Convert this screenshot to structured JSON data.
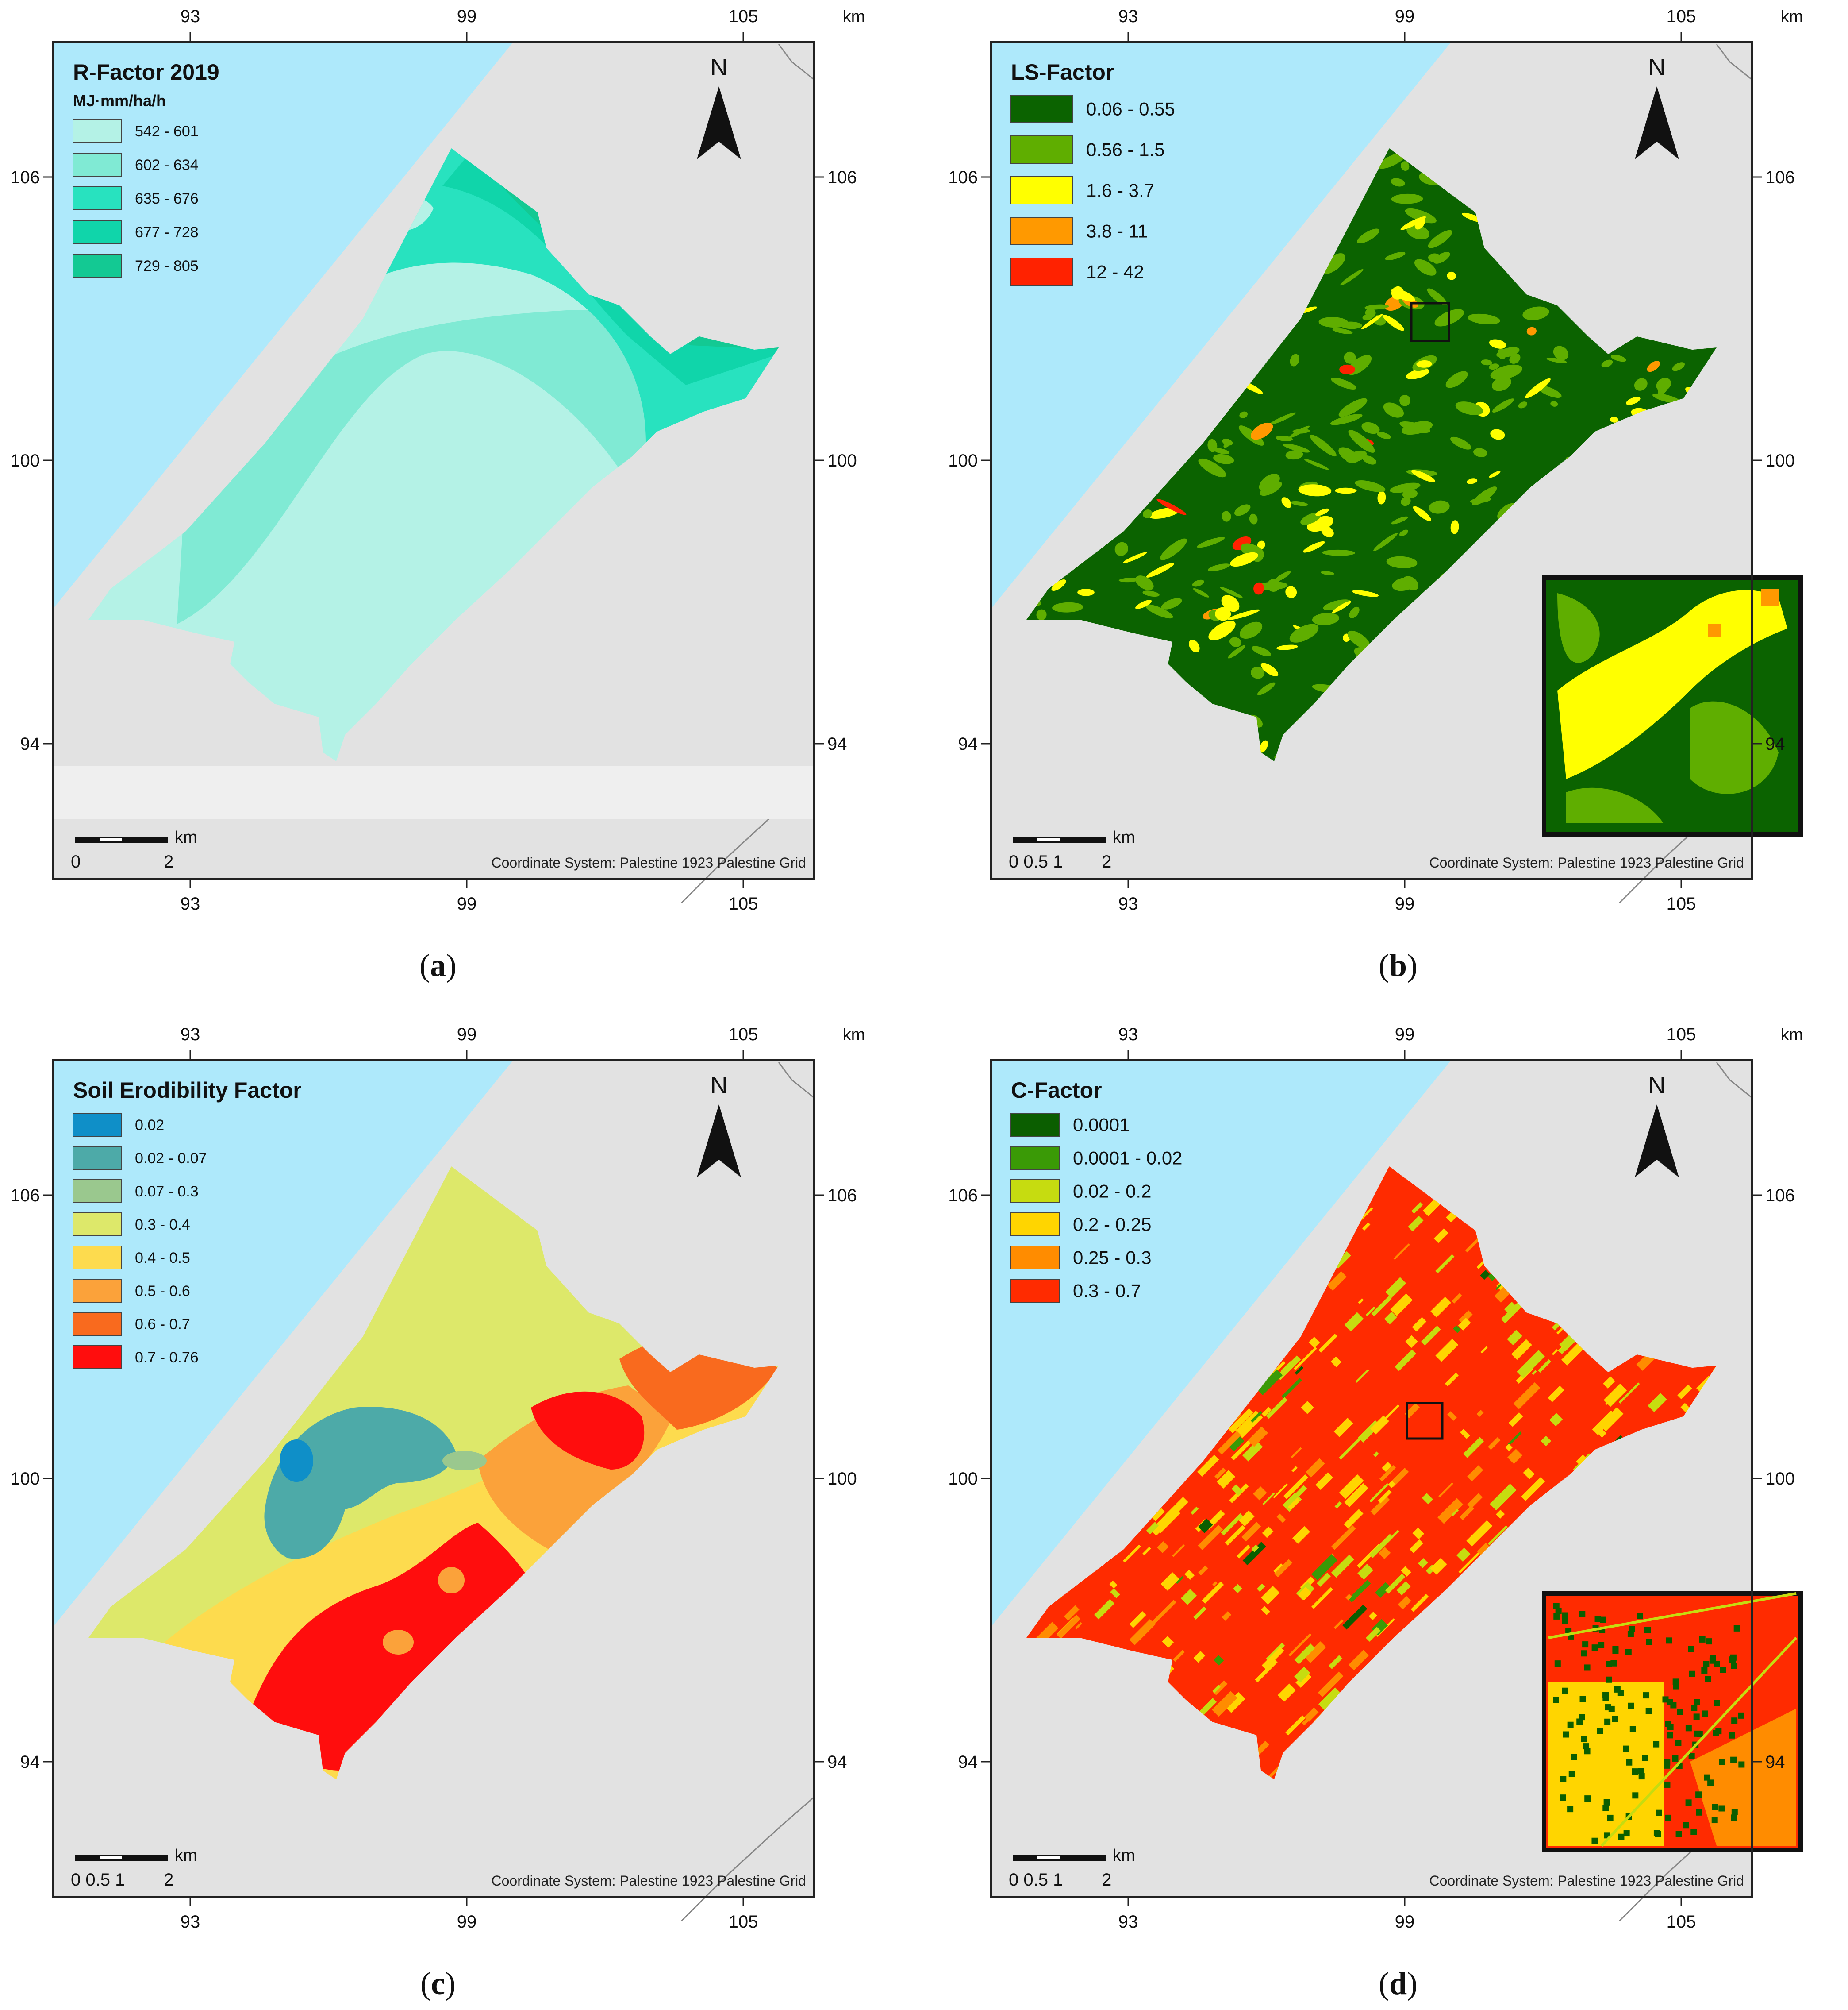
{
  "figure": {
    "panels": [
      {
        "id": "a",
        "caption_letter": "a",
        "title": "R-Factor 2019",
        "subtitle": "MJ·mm/ha/h",
        "legend": [
          {
            "label": "542 - 601",
            "color": "#b4f2e6"
          },
          {
            "label": "602 - 634",
            "color": "#80ead4"
          },
          {
            "label": "635 - 676",
            "color": "#28e2bf"
          },
          {
            "label": "677 - 728",
            "color": "#10d5aa"
          },
          {
            "label": "729 - 805",
            "color": "#13c993"
          }
        ],
        "scale": {
          "unit": "km",
          "ticks": [
            "0",
            "2"
          ]
        },
        "coordinate_system": "Coordinate System: Palestine 1923 Palestine Grid",
        "north": "N",
        "x_ticks": [
          "93",
          "99",
          "105"
        ],
        "y_ticks": [
          "106",
          "100",
          "94"
        ],
        "axis_unit": "km"
      },
      {
        "id": "b",
        "caption_letter": "b",
        "title": "LS-Factor",
        "subtitle": "",
        "legend": [
          {
            "label": "0.06 - 0.55",
            "color": "#0b6300"
          },
          {
            "label": "0.56 - 1.5",
            "color": "#5fae00"
          },
          {
            "label": "1.6 - 3.7",
            "color": "#ffff00"
          },
          {
            "label": "3.8 - 11",
            "color": "#ff9900"
          },
          {
            "label": "12 - 42",
            "color": "#ff2200"
          }
        ],
        "scale": {
          "unit": "km",
          "ticks": [
            "0 0.5 1",
            "2"
          ]
        },
        "coordinate_system": "Coordinate System: Palestine 1923 Palestine Grid",
        "north": "N",
        "x_ticks": [
          "93",
          "99",
          "105"
        ],
        "y_ticks": [
          "106",
          "100",
          "94"
        ],
        "axis_unit": "km"
      },
      {
        "id": "c",
        "caption_letter": "c",
        "title": "Soil Erodibility Factor",
        "subtitle": "",
        "legend": [
          {
            "label": "0.02",
            "color": "#0f8fc8"
          },
          {
            "label": "0.02 - 0.07",
            "color": "#4daaa8"
          },
          {
            "label": "0.07 - 0.3",
            "color": "#9ac88e"
          },
          {
            "label": "0.3 - 0.4",
            "color": "#dde86a"
          },
          {
            "label": "0.4 - 0.5",
            "color": "#fddb4e"
          },
          {
            "label": "0.5 - 0.6",
            "color": "#fba23a"
          },
          {
            "label": "0.6 - 0.7",
            "color": "#f96a1e"
          },
          {
            "label": "0.7 - 0.76",
            "color": "#ff0d0d"
          }
        ],
        "scale": {
          "unit": "km",
          "ticks": [
            "0 0.5 1",
            "2"
          ]
        },
        "coordinate_system": "Coordinate System: Palestine 1923 Palestine Grid",
        "north": "N",
        "x_ticks": [
          "93",
          "99",
          "105"
        ],
        "y_ticks": [
          "106",
          "100",
          "94"
        ],
        "axis_unit": "km"
      },
      {
        "id": "d",
        "caption_letter": "d",
        "title": "C-Factor",
        "subtitle": "",
        "legend": [
          {
            "label": "0.0001",
            "color": "#0b5e00"
          },
          {
            "label": "0.0001 - 0.02",
            "color": "#3a9a06"
          },
          {
            "label": "0.02 - 0.2",
            "color": "#c6dc10"
          },
          {
            "label": "0.2 - 0.25",
            "color": "#ffd500"
          },
          {
            "label": "0.25 - 0.3",
            "color": "#ff8c00"
          },
          {
            "label": "0.3 - 0.7",
            "color": "#ff2b00"
          }
        ],
        "scale": {
          "unit": "km",
          "ticks": [
            "0 0.5 1",
            "2"
          ]
        },
        "coordinate_system": "Coordinate System: Palestine 1923 Palestine Grid",
        "north": "N",
        "x_ticks": [
          "93",
          "99",
          "105"
        ],
        "y_ticks": [
          "106",
          "100",
          "94"
        ],
        "axis_unit": "km"
      }
    ],
    "colors": {
      "sea": "#aee9fb",
      "land": "#e2e2e2",
      "frame": "#222222"
    }
  }
}
